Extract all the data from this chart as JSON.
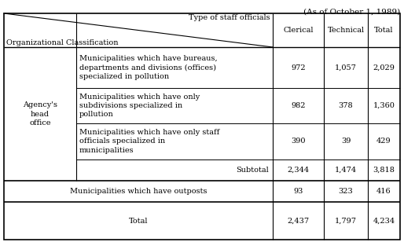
{
  "title_note": "(As of October 1, 1989)",
  "header_diagonal_top": "Type of staff officials",
  "header_diagonal_bottom": "Organizational Classification",
  "col_headers": [
    "Clerical",
    "Technical",
    "Total"
  ],
  "rows": [
    {
      "sub": "Municipalities which have bureaus,\ndepartments and divisions (offices)\nspecialized in pollution",
      "clerical": "972",
      "technical": "1,057",
      "total": "2,029"
    },
    {
      "sub": "Municipalities which have only\nsubdivisions specialized in\npollution",
      "clerical": "982",
      "technical": "378",
      "total": "1,360"
    },
    {
      "sub": "Municipalities which have only staff\nofficials specialized in\nmunicipalities",
      "clerical": "390",
      "technical": "39",
      "total": "429"
    },
    {
      "sub": "Subtotal",
      "clerical": "2,344",
      "technical": "1,474",
      "total": "3,818",
      "is_subtotal": true
    }
  ],
  "group_label": "Agency's\nhead\noffice",
  "outpost_row": {
    "label": "Municipalities which have outposts",
    "clerical": "93",
    "technical": "323",
    "total": "416"
  },
  "total_row": {
    "label": "Total",
    "clerical": "2,437",
    "technical": "1,797",
    "total": "4,234"
  },
  "bg_color": "#ffffff",
  "line_color": "#000000",
  "text_color": "#000000",
  "font_size": 7.0,
  "note_font_size": 7.5
}
